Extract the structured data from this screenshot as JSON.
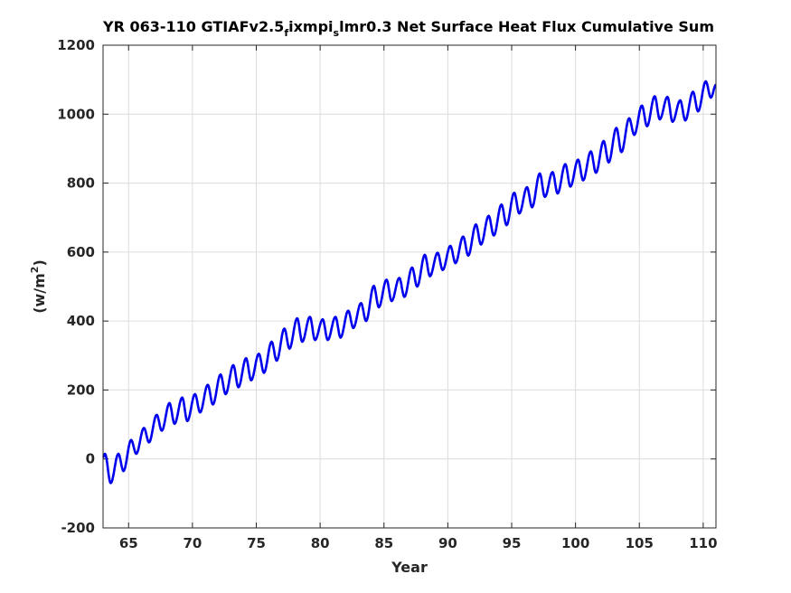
{
  "chart_data": {
    "type": "line",
    "title_parts": [
      "YR 063-110 GTIAFv2.5",
      "f",
      "ixmpi",
      "s",
      "lmr0.3 Net Surface Heat Flux  Cumulative Sum"
    ],
    "xlabel": "Year",
    "ylabel_parts": [
      "(w/m",
      "2",
      ")"
    ],
    "xlim": [
      63,
      111
    ],
    "ylim": [
      -200,
      1200
    ],
    "xticks": [
      65,
      70,
      75,
      80,
      85,
      90,
      95,
      100,
      105,
      110
    ],
    "yticks": [
      -200,
      0,
      200,
      400,
      600,
      800,
      1000,
      1200
    ],
    "grid": true,
    "series": [
      {
        "color": "#0000ee",
        "annual_peaks": [
          [
            63.15,
            15
          ],
          [
            64.2,
            15
          ],
          [
            65.2,
            55
          ],
          [
            66.2,
            90
          ],
          [
            67.2,
            128
          ],
          [
            68.2,
            162
          ],
          [
            69.2,
            178
          ],
          [
            70.2,
            188
          ],
          [
            71.2,
            215
          ],
          [
            72.2,
            245
          ],
          [
            73.2,
            272
          ],
          [
            74.2,
            292
          ],
          [
            75.2,
            305
          ],
          [
            76.2,
            340
          ],
          [
            77.2,
            378
          ],
          [
            78.2,
            408
          ],
          [
            79.2,
            412
          ],
          [
            80.2,
            405
          ],
          [
            81.2,
            412
          ],
          [
            82.2,
            430
          ],
          [
            83.2,
            452
          ],
          [
            84.2,
            502
          ],
          [
            85.2,
            520
          ],
          [
            86.2,
            525
          ],
          [
            87.2,
            555
          ],
          [
            88.2,
            592
          ],
          [
            89.2,
            598
          ],
          [
            90.2,
            618
          ],
          [
            91.2,
            645
          ],
          [
            92.2,
            680
          ],
          [
            93.2,
            705
          ],
          [
            94.2,
            738
          ],
          [
            95.2,
            772
          ],
          [
            96.2,
            788
          ],
          [
            97.2,
            828
          ],
          [
            98.2,
            832
          ],
          [
            99.2,
            855
          ],
          [
            100.2,
            868
          ],
          [
            101.2,
            892
          ],
          [
            102.2,
            922
          ],
          [
            103.2,
            960
          ],
          [
            104.2,
            988
          ],
          [
            105.2,
            1025
          ],
          [
            106.2,
            1052
          ],
          [
            107.2,
            1050
          ],
          [
            108.2,
            1040
          ],
          [
            109.2,
            1065
          ],
          [
            110.2,
            1095
          ]
        ],
        "annual_troughs": [
          [
            63.6,
            -70
          ],
          [
            64.6,
            -35
          ],
          [
            65.6,
            15
          ],
          [
            66.6,
            48
          ],
          [
            67.6,
            82
          ],
          [
            68.6,
            102
          ],
          [
            69.6,
            110
          ],
          [
            70.6,
            135
          ],
          [
            71.6,
            158
          ],
          [
            72.6,
            188
          ],
          [
            73.6,
            208
          ],
          [
            74.6,
            228
          ],
          [
            75.6,
            250
          ],
          [
            76.6,
            285
          ],
          [
            77.6,
            320
          ],
          [
            78.6,
            340
          ],
          [
            79.6,
            345
          ],
          [
            80.6,
            345
          ],
          [
            81.6,
            352
          ],
          [
            82.6,
            380
          ],
          [
            83.6,
            400
          ],
          [
            84.6,
            440
          ],
          [
            85.6,
            458
          ],
          [
            86.6,
            470
          ],
          [
            87.6,
            500
          ],
          [
            88.6,
            530
          ],
          [
            89.6,
            548
          ],
          [
            90.6,
            568
          ],
          [
            91.6,
            590
          ],
          [
            92.6,
            622
          ],
          [
            93.6,
            648
          ],
          [
            94.6,
            678
          ],
          [
            95.6,
            712
          ],
          [
            96.6,
            730
          ],
          [
            97.6,
            760
          ],
          [
            98.6,
            770
          ],
          [
            99.6,
            790
          ],
          [
            100.6,
            808
          ],
          [
            101.6,
            830
          ],
          [
            102.6,
            860
          ],
          [
            103.6,
            890
          ],
          [
            104.6,
            940
          ],
          [
            105.6,
            965
          ],
          [
            106.6,
            985
          ],
          [
            107.6,
            978
          ],
          [
            108.6,
            982
          ],
          [
            109.6,
            1008
          ],
          [
            110.6,
            1048
          ]
        ],
        "start_point": [
          63.0,
          5
        ],
        "end_point": [
          111.0,
          1085
        ]
      }
    ]
  }
}
